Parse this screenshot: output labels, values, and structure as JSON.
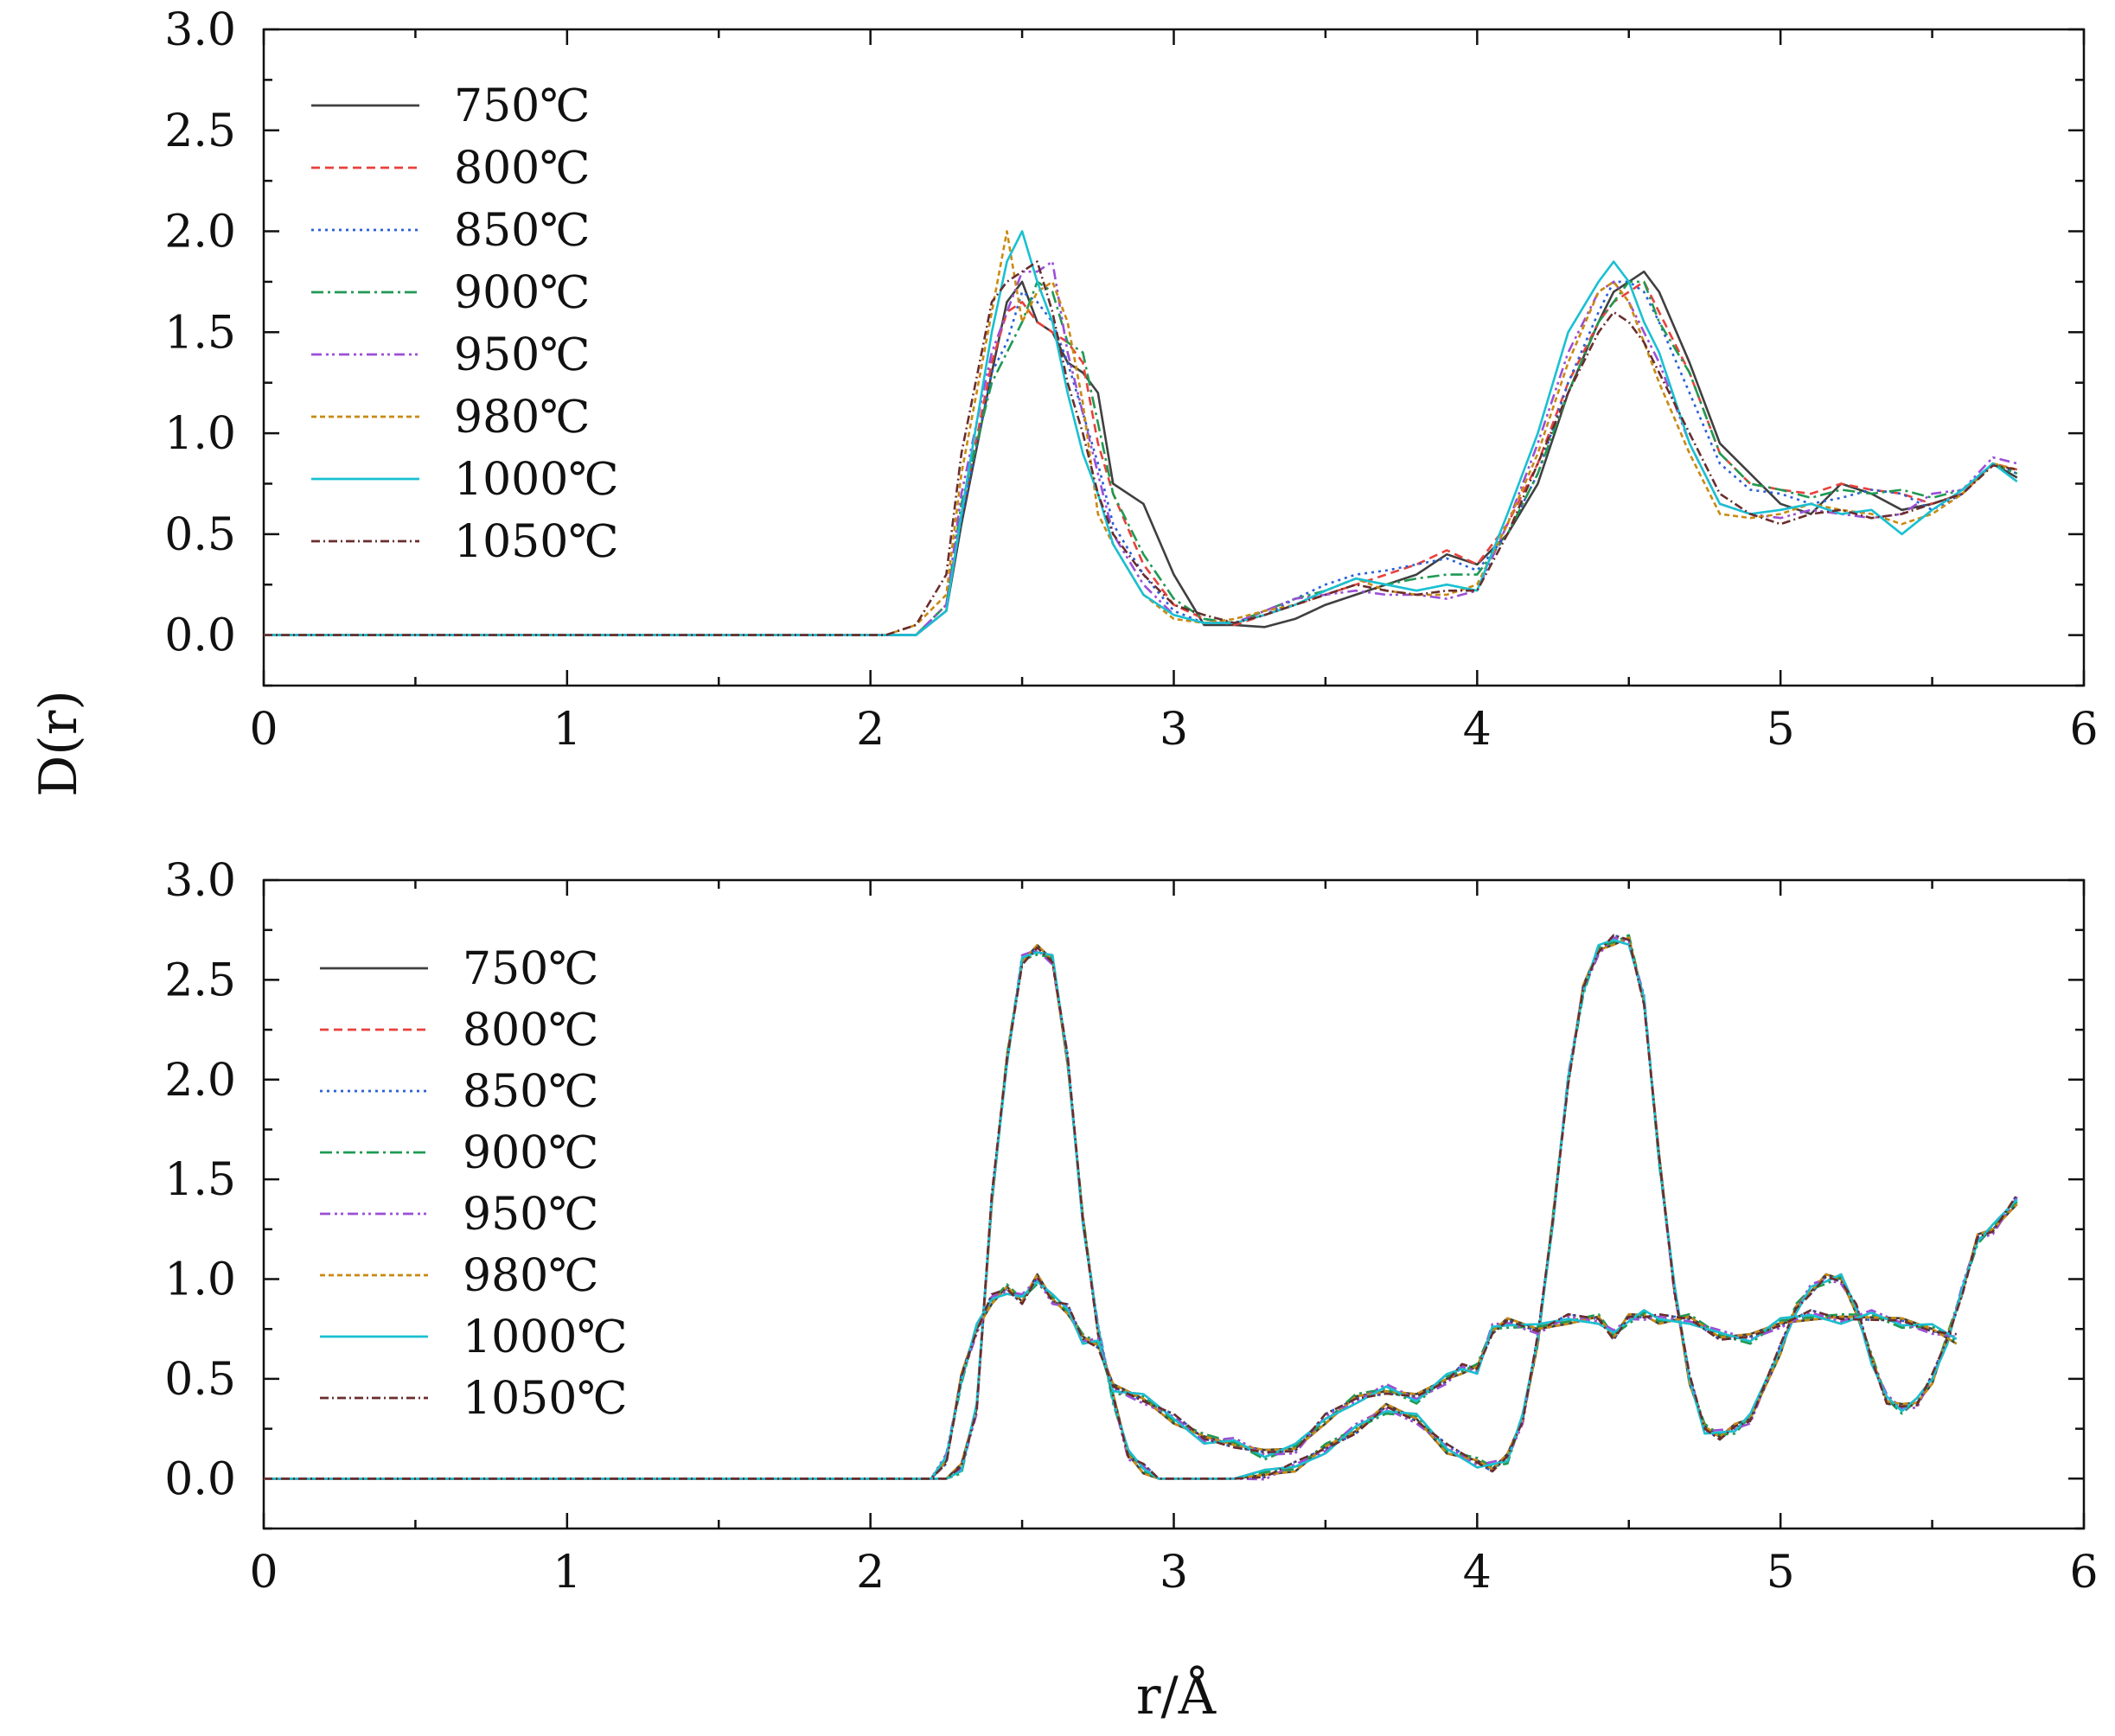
{
  "figure": {
    "ylabel": "D(r)",
    "xlabel": "r/Å"
  },
  "chart_data": [
    {
      "type": "line",
      "panel": "top",
      "xlabel": "r/Å",
      "ylabel": "D(r)",
      "xlim": [
        0,
        6
      ],
      "ylim": [
        -0.25,
        3.0
      ],
      "xticks": [
        "0",
        "1",
        "2",
        "3",
        "4",
        "5",
        "6"
      ],
      "yticks": [
        "0.0",
        "0.5",
        "1.0",
        "1.5",
        "2.0",
        "2.5",
        "3.0"
      ],
      "legend_position": "top-left",
      "shared_x": [
        0.0,
        2.05,
        2.15,
        2.25,
        2.3,
        2.4,
        2.45,
        2.5,
        2.55,
        2.6,
        2.65,
        2.7,
        2.75,
        2.8,
        2.9,
        3.0,
        3.1,
        3.2,
        3.3,
        3.4,
        3.5,
        3.6,
        3.7,
        3.8,
        3.9,
        4.0,
        4.1,
        4.2,
        4.3,
        4.4,
        4.45,
        4.5,
        4.55,
        4.6,
        4.7,
        4.8,
        4.9,
        5.0,
        5.1,
        5.2,
        5.3,
        5.4,
        5.5,
        5.6,
        5.7,
        5.78
      ],
      "series": [
        {
          "name": "750℃",
          "color": "#404040",
          "dash": "",
          "values": [
            0.0,
            0.0,
            0.0,
            0.12,
            0.55,
            1.3,
            1.65,
            1.75,
            1.55,
            1.5,
            1.35,
            1.3,
            1.2,
            0.75,
            0.65,
            0.3,
            0.05,
            0.05,
            0.04,
            0.08,
            0.15,
            0.2,
            0.25,
            0.3,
            0.4,
            0.35,
            0.5,
            0.75,
            1.2,
            1.55,
            1.7,
            1.75,
            1.8,
            1.7,
            1.35,
            0.95,
            0.8,
            0.65,
            0.6,
            0.75,
            0.7,
            0.62,
            0.65,
            0.7,
            0.85,
            0.78
          ]
        },
        {
          "name": "800℃",
          "color": "#e8413c",
          "dash": "10 6",
          "values": [
            0.0,
            0.0,
            0.0,
            0.15,
            0.6,
            1.35,
            1.6,
            1.65,
            1.55,
            1.5,
            1.45,
            1.35,
            0.95,
            0.7,
            0.35,
            0.15,
            0.08,
            0.05,
            0.1,
            0.15,
            0.2,
            0.25,
            0.3,
            0.35,
            0.42,
            0.35,
            0.55,
            0.85,
            1.25,
            1.55,
            1.65,
            1.7,
            1.75,
            1.6,
            1.3,
            0.9,
            0.75,
            0.72,
            0.7,
            0.75,
            0.72,
            0.7,
            0.65,
            0.7,
            0.85,
            0.82
          ]
        },
        {
          "name": "850℃",
          "color": "#2a5fd8",
          "dash": "3 5",
          "values": [
            0.0,
            0.0,
            0.0,
            0.12,
            0.58,
            1.3,
            1.45,
            1.7,
            1.65,
            1.55,
            1.35,
            1.1,
            0.85,
            0.55,
            0.3,
            0.12,
            0.06,
            0.06,
            0.1,
            0.18,
            0.25,
            0.3,
            0.32,
            0.35,
            0.38,
            0.32,
            0.5,
            0.8,
            1.25,
            1.6,
            1.75,
            1.75,
            1.7,
            1.55,
            1.2,
            0.85,
            0.72,
            0.7,
            0.65,
            0.68,
            0.72,
            0.7,
            0.62,
            0.7,
            0.85,
            0.8
          ]
        },
        {
          "name": "900℃",
          "color": "#1f9a52",
          "dash": "14 5 3 5",
          "values": [
            0.0,
            0.0,
            0.0,
            0.15,
            0.65,
            1.25,
            1.4,
            1.55,
            1.75,
            1.7,
            1.45,
            1.4,
            1.05,
            0.7,
            0.4,
            0.18,
            0.08,
            0.06,
            0.12,
            0.18,
            0.22,
            0.28,
            0.25,
            0.28,
            0.3,
            0.3,
            0.5,
            0.8,
            1.2,
            1.55,
            1.65,
            1.75,
            1.75,
            1.55,
            1.3,
            0.9,
            0.75,
            0.72,
            0.68,
            0.72,
            0.7,
            0.72,
            0.68,
            0.72,
            0.85,
            0.8
          ]
        },
        {
          "name": "950℃",
          "color": "#9b4fd6",
          "dash": "12 5 3 4 3 5",
          "values": [
            0.0,
            0.0,
            0.0,
            0.15,
            0.7,
            1.4,
            1.6,
            1.8,
            1.8,
            1.85,
            1.4,
            1.1,
            0.8,
            0.5,
            0.25,
            0.1,
            0.06,
            0.06,
            0.12,
            0.18,
            0.2,
            0.22,
            0.2,
            0.2,
            0.18,
            0.22,
            0.55,
            0.95,
            1.4,
            1.7,
            1.75,
            1.65,
            1.5,
            1.35,
            0.95,
            0.65,
            0.6,
            0.58,
            0.62,
            0.6,
            0.58,
            0.6,
            0.7,
            0.72,
            0.88,
            0.85
          ]
        },
        {
          "name": "980℃",
          "color": "#c98a12",
          "dash": "6 4",
          "values": [
            0.0,
            0.0,
            0.05,
            0.2,
            0.8,
            1.6,
            2.0,
            1.55,
            1.7,
            1.75,
            1.55,
            1.15,
            0.6,
            0.45,
            0.2,
            0.08,
            0.06,
            0.08,
            0.12,
            0.15,
            0.22,
            0.28,
            0.22,
            0.2,
            0.2,
            0.25,
            0.55,
            0.9,
            1.35,
            1.7,
            1.75,
            1.65,
            1.45,
            1.25,
            0.9,
            0.6,
            0.58,
            0.6,
            0.65,
            0.62,
            0.6,
            0.55,
            0.6,
            0.7,
            0.85,
            0.82
          ]
        },
        {
          "name": "1000℃",
          "color": "#19c0d2",
          "dash": "",
          "values": [
            0.0,
            0.0,
            0.0,
            0.12,
            0.6,
            1.5,
            1.85,
            2.0,
            1.75,
            1.55,
            1.2,
            0.9,
            0.7,
            0.45,
            0.2,
            0.1,
            0.06,
            0.06,
            0.1,
            0.15,
            0.22,
            0.28,
            0.25,
            0.22,
            0.25,
            0.22,
            0.6,
            1.0,
            1.5,
            1.75,
            1.85,
            1.75,
            1.55,
            1.4,
            0.95,
            0.65,
            0.6,
            0.62,
            0.65,
            0.6,
            0.62,
            0.5,
            0.62,
            0.72,
            0.85,
            0.76
          ]
        },
        {
          "name": "1050℃",
          "color": "#6a2d2d",
          "dash": "10 4 2 4",
          "values": [
            0.0,
            0.0,
            0.05,
            0.3,
            0.9,
            1.65,
            1.75,
            1.8,
            1.85,
            1.6,
            1.25,
            1.0,
            0.7,
            0.5,
            0.3,
            0.15,
            0.1,
            0.06,
            0.1,
            0.15,
            0.2,
            0.25,
            0.22,
            0.2,
            0.22,
            0.22,
            0.5,
            0.85,
            1.2,
            1.5,
            1.6,
            1.55,
            1.45,
            1.3,
            1.0,
            0.7,
            0.6,
            0.55,
            0.6,
            0.62,
            0.58,
            0.6,
            0.65,
            0.7,
            0.84,
            0.82
          ]
        }
      ]
    },
    {
      "type": "line",
      "panel": "bottom",
      "xlabel": "r/Å",
      "ylabel": "D(r)",
      "xlim": [
        0,
        6
      ],
      "ylim": [
        -0.25,
        3.0
      ],
      "xticks": [
        "0",
        "1",
        "2",
        "3",
        "4",
        "5",
        "6"
      ],
      "yticks": [
        "0.0",
        "0.5",
        "1.0",
        "1.5",
        "2.0",
        "2.5",
        "3.0"
      ],
      "legend_position": "top-left",
      "curve_groups": [
        {
          "group": "sharp",
          "x": [
            0.0,
            2.2,
            2.25,
            2.3,
            2.35,
            2.4,
            2.45,
            2.5,
            2.55,
            2.6,
            2.65,
            2.7,
            2.75,
            2.8,
            2.85,
            2.9,
            2.95,
            3.0,
            3.2,
            3.3,
            3.4,
            3.5,
            3.6,
            3.7,
            3.8,
            3.9,
            4.0,
            4.05,
            4.1,
            4.15,
            4.2,
            4.25,
            4.3,
            4.35,
            4.4,
            4.45,
            4.5,
            4.55,
            4.6,
            4.65,
            4.7,
            4.75,
            4.8,
            4.85,
            4.9,
            5.0,
            5.05,
            5.1,
            5.15,
            5.2,
            5.25,
            5.3,
            5.35,
            5.4,
            5.45,
            5.5,
            5.55,
            5.6,
            5.65,
            5.7,
            5.78
          ],
          "values": [
            0.0,
            0.0,
            0.0,
            0.05,
            0.35,
            1.4,
            2.1,
            2.6,
            2.65,
            2.6,
            2.1,
            1.3,
            0.75,
            0.4,
            0.12,
            0.05,
            0.0,
            0.0,
            0.0,
            0.02,
            0.06,
            0.15,
            0.25,
            0.35,
            0.3,
            0.15,
            0.08,
            0.06,
            0.1,
            0.3,
            0.7,
            1.3,
            2.0,
            2.45,
            2.65,
            2.7,
            2.7,
            2.4,
            1.6,
            0.95,
            0.5,
            0.25,
            0.22,
            0.25,
            0.3,
            0.65,
            0.85,
            0.95,
            1.0,
            1.0,
            0.85,
            0.6,
            0.4,
            0.35,
            0.38,
            0.5,
            0.7,
            0.95,
            1.2,
            1.25,
            1.4
          ]
        },
        {
          "group": "broad",
          "x": [
            0.0,
            2.2,
            2.25,
            2.3,
            2.35,
            2.4,
            2.45,
            2.5,
            2.55,
            2.6,
            2.65,
            2.7,
            2.75,
            2.8,
            2.9,
            3.0,
            3.1,
            3.2,
            3.3,
            3.4,
            3.5,
            3.6,
            3.7,
            3.8,
            3.9,
            3.95,
            4.0,
            4.05,
            4.1,
            4.2,
            4.3,
            4.4,
            4.45,
            4.5,
            4.55,
            4.6,
            4.7,
            4.8,
            4.9,
            5.0,
            5.1,
            5.2,
            5.3,
            5.4,
            5.5,
            5.58
          ],
          "values": [
            0.0,
            0.0,
            0.1,
            0.5,
            0.75,
            0.9,
            0.95,
            0.9,
            1.0,
            0.9,
            0.85,
            0.7,
            0.68,
            0.45,
            0.4,
            0.3,
            0.2,
            0.18,
            0.12,
            0.15,
            0.3,
            0.4,
            0.45,
            0.4,
            0.5,
            0.55,
            0.55,
            0.75,
            0.78,
            0.75,
            0.8,
            0.8,
            0.72,
            0.8,
            0.82,
            0.8,
            0.8,
            0.72,
            0.7,
            0.78,
            0.82,
            0.8,
            0.82,
            0.78,
            0.75,
            0.7
          ]
        }
      ],
      "series": [
        {
          "name": "750℃",
          "color": "#404040",
          "dash": ""
        },
        {
          "name": "800℃",
          "color": "#e8413c",
          "dash": "10 6"
        },
        {
          "name": "850℃",
          "color": "#2a5fd8",
          "dash": "3 5"
        },
        {
          "name": "900℃",
          "color": "#1f9a52",
          "dash": "14 5 3 5"
        },
        {
          "name": "950℃",
          "color": "#9b4fd6",
          "dash": "12 5 3 4 3 5"
        },
        {
          "name": "980℃",
          "color": "#c98a12",
          "dash": "6 4"
        },
        {
          "name": "1000℃",
          "color": "#19c0d2",
          "dash": ""
        },
        {
          "name": "1050℃",
          "color": "#6a2d2d",
          "dash": "10 4 2 4"
        }
      ]
    }
  ]
}
